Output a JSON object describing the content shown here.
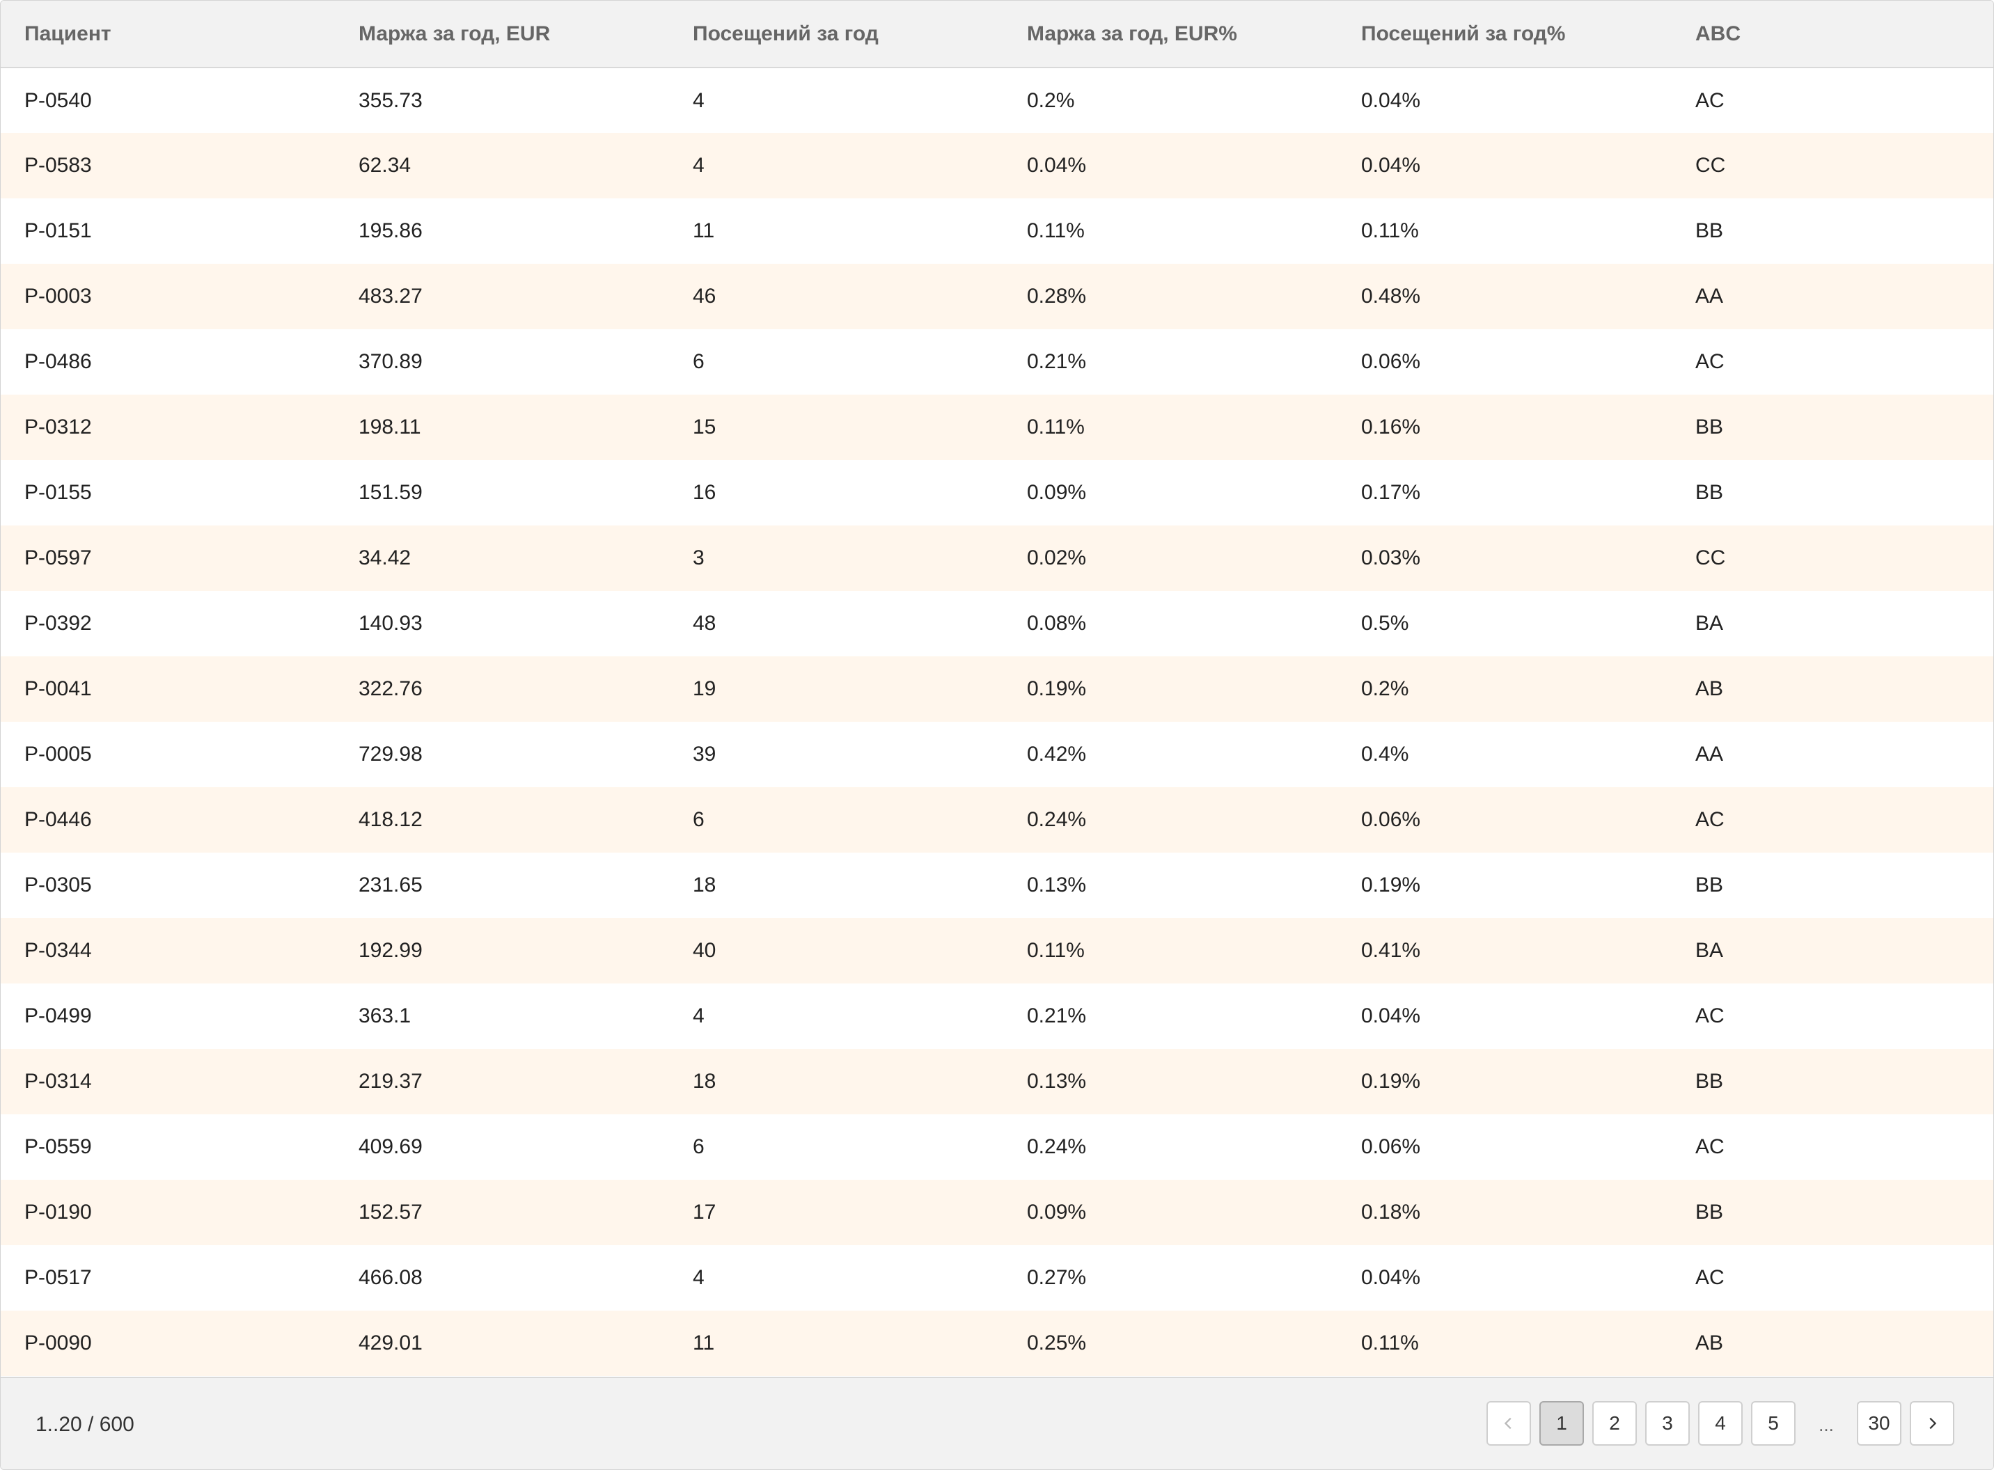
{
  "table": {
    "columns": [
      "Пациент",
      "Маржа за год, EUR",
      "Посещений за год",
      "Маржа за год, EUR%",
      "Посещений за год%",
      "ABC"
    ],
    "rows": [
      [
        "P-0540",
        "355.73",
        "4",
        "0.2%",
        "0.04%",
        "AC"
      ],
      [
        "P-0583",
        "62.34",
        "4",
        "0.04%",
        "0.04%",
        "CC"
      ],
      [
        "P-0151",
        "195.86",
        "11",
        "0.11%",
        "0.11%",
        "BB"
      ],
      [
        "P-0003",
        "483.27",
        "46",
        "0.28%",
        "0.48%",
        "AA"
      ],
      [
        "P-0486",
        "370.89",
        "6",
        "0.21%",
        "0.06%",
        "AC"
      ],
      [
        "P-0312",
        "198.11",
        "15",
        "0.11%",
        "0.16%",
        "BB"
      ],
      [
        "P-0155",
        "151.59",
        "16",
        "0.09%",
        "0.17%",
        "BB"
      ],
      [
        "P-0597",
        "34.42",
        "3",
        "0.02%",
        "0.03%",
        "CC"
      ],
      [
        "P-0392",
        "140.93",
        "48",
        "0.08%",
        "0.5%",
        "BA"
      ],
      [
        "P-0041",
        "322.76",
        "19",
        "0.19%",
        "0.2%",
        "AB"
      ],
      [
        "P-0005",
        "729.98",
        "39",
        "0.42%",
        "0.4%",
        "AA"
      ],
      [
        "P-0446",
        "418.12",
        "6",
        "0.24%",
        "0.06%",
        "AC"
      ],
      [
        "P-0305",
        "231.65",
        "18",
        "0.13%",
        "0.19%",
        "BB"
      ],
      [
        "P-0344",
        "192.99",
        "40",
        "0.11%",
        "0.41%",
        "BA"
      ],
      [
        "P-0499",
        "363.1",
        "4",
        "0.21%",
        "0.04%",
        "AC"
      ],
      [
        "P-0314",
        "219.37",
        "18",
        "0.13%",
        "0.19%",
        "BB"
      ],
      [
        "P-0559",
        "409.69",
        "6",
        "0.24%",
        "0.06%",
        "AC"
      ],
      [
        "P-0190",
        "152.57",
        "17",
        "0.09%",
        "0.18%",
        "BB"
      ],
      [
        "P-0517",
        "466.08",
        "4",
        "0.27%",
        "0.04%",
        "AC"
      ],
      [
        "P-0090",
        "429.01",
        "11",
        "0.25%",
        "0.11%",
        "AB"
      ]
    ]
  },
  "footer": {
    "range_label": "1..20 / 600",
    "pager": {
      "prev_icon": "chevron-left-icon",
      "next_icon": "chevron-right-icon",
      "pages": [
        "1",
        "2",
        "3",
        "4",
        "5"
      ],
      "ellipsis": "...",
      "last_page": "30",
      "active_page": "1"
    }
  },
  "colors": {
    "header_bg": "#f2f2f2",
    "row_alt_bg": "#fff6ec",
    "header_text": "#666666",
    "active_page_bg": "#dcdcdc"
  }
}
